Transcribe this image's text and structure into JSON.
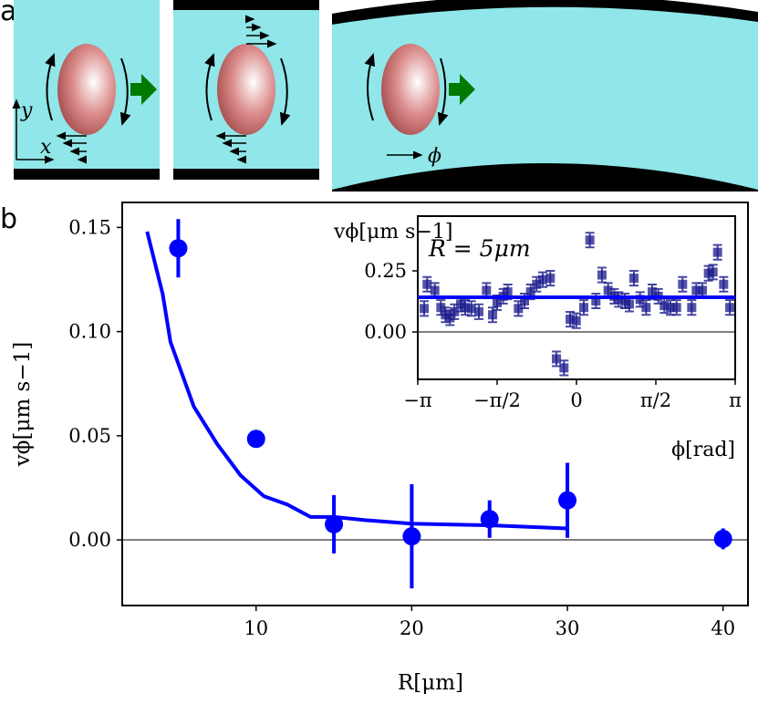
{
  "panel_a": {
    "label": "a",
    "axis_x": "x",
    "axis_y": "y",
    "phi": "ϕ",
    "colors": {
      "fluid": "#90e6e8",
      "wall": "#000000",
      "particle": "#c85a5a",
      "motion_arrow": "#007a00"
    }
  },
  "panel_b": {
    "label": "b"
  },
  "chart_data": [
    {
      "type": "scatter",
      "xlabel": "R[μm]",
      "ylabel": "vϕ[μm s−1]",
      "xlim": [
        1.4,
        41.6
      ],
      "ylim": [
        -0.0315,
        0.162
      ],
      "xticks": [
        10,
        20,
        30,
        40
      ],
      "xtick_labels": [
        "10",
        "20",
        "30",
        "40"
      ],
      "yticks": [
        0,
        0.05,
        0.1,
        0.15
      ],
      "ytick_labels": [
        "0.00",
        "0.05",
        "0.10",
        "0.15"
      ],
      "zero_line": true,
      "grid": false,
      "color": "#0000ff",
      "points": {
        "x": [
          5,
          10,
          15,
          20,
          25,
          30,
          40
        ],
        "y": [
          0.14,
          0.0485,
          0.0075,
          0.0017,
          0.01,
          0.019,
          0.0005
        ],
        "yerr": [
          0.014,
          0.004,
          0.014,
          0.025,
          0.009,
          0.018,
          0.005
        ]
      },
      "curve": {
        "x": [
          3,
          4,
          4.5,
          6,
          7.5,
          9,
          10.5,
          12,
          13.5,
          15,
          17,
          20,
          25,
          30
        ],
        "y": [
          0.148,
          0.118,
          0.095,
          0.064,
          0.046,
          0.031,
          0.021,
          0.017,
          0.011,
          0.011,
          0.0095,
          0.0078,
          0.007,
          0.0055
        ]
      }
    },
    {
      "type": "scatter",
      "inset": true,
      "xlabel": "ϕ[rad]",
      "ylabel": "vϕ[μm s−1]",
      "annotation": "R = 5μm",
      "xlim": [
        -3.1416,
        3.1416
      ],
      "ylim": [
        -0.194,
        0.474
      ],
      "xticks": [
        -3.1416,
        -1.5708,
        0,
        1.5708,
        3.1416
      ],
      "xtick_labels": [
        "−π",
        "−π/2",
        "0",
        "π/2",
        "π"
      ],
      "yticks": [
        0,
        0.25
      ],
      "ytick_labels": [
        "0.00",
        "0.25"
      ],
      "zero_line": true,
      "mean_line": 0.142,
      "marker_color": "#1a1a8c",
      "line_color": "#0000ff",
      "points": {
        "x": [
          -3.015,
          -2.956,
          -2.804,
          -2.684,
          -2.594,
          -2.504,
          -2.414,
          -2.293,
          -2.203,
          -2.082,
          -1.932,
          -1.782,
          -1.661,
          -1.571,
          -1.45,
          -1.36,
          -1.15,
          -1.029,
          -0.908,
          -0.789,
          -0.668,
          -0.518,
          -0.397,
          -0.247,
          -0.126,
          -0.005,
          0.145,
          0.265,
          0.385,
          0.505,
          0.626,
          0.746,
          0.836,
          0.957,
          1.047,
          1.137,
          1.258,
          1.378,
          1.499,
          1.619,
          1.739,
          1.86,
          1.981,
          2.1,
          2.281,
          2.371,
          2.492,
          2.612,
          2.703,
          2.793,
          2.913,
          3.035
        ],
        "y": [
          0.096,
          0.195,
          0.17,
          0.1,
          0.07,
          0.058,
          0.083,
          0.114,
          0.1,
          0.096,
          0.083,
          0.17,
          0.07,
          0.12,
          0.146,
          0.164,
          0.096,
          0.127,
          0.164,
          0.195,
          0.214,
          0.22,
          -0.11,
          -0.147,
          0.052,
          0.046,
          0.1,
          0.376,
          0.127,
          0.233,
          0.17,
          0.146,
          0.133,
          0.127,
          0.114,
          0.22,
          0.133,
          0.1,
          0.164,
          0.146,
          0.108,
          0.1,
          0.1,
          0.195,
          0.1,
          0.17,
          0.17,
          0.24,
          0.245,
          0.326,
          0.195,
          0.1
        ],
        "yerr": 0.03
      }
    }
  ]
}
